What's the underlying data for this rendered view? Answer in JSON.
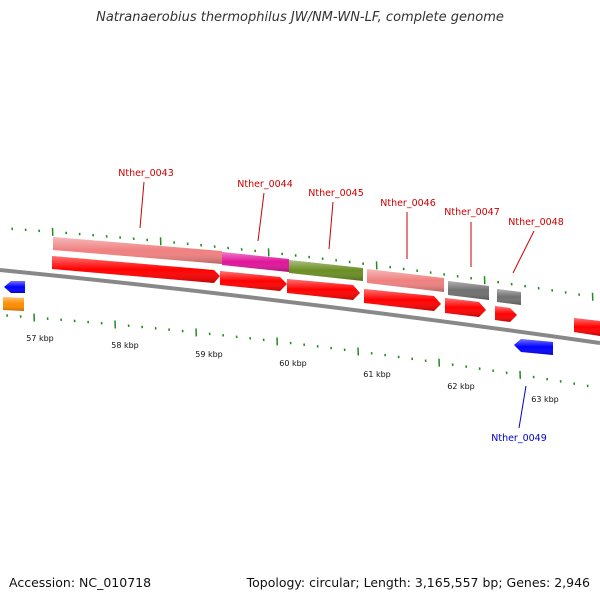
{
  "title": "Natranaerobius thermophilus JW/NM-WN-LF, complete genome",
  "footer": {
    "accession": "Accession: NC_010718",
    "topology": "Topology: circular; Length: 3,165,557 bp; Genes: 2,946"
  },
  "scale_labels": [
    "57 kbp",
    "58 kbp",
    "59 kbp",
    "60 kbp",
    "61 kbp",
    "62 kbp",
    "63 kbp"
  ],
  "gene_labels": [
    {
      "text": "Nther_0043",
      "color": "#cc0000"
    },
    {
      "text": "Nther_0044",
      "color": "#cc0000"
    },
    {
      "text": "Nther_0045",
      "color": "#cc0000"
    },
    {
      "text": "Nther_0046",
      "color": "#cc0000"
    },
    {
      "text": "Nther_0047",
      "color": "#cc0000"
    },
    {
      "text": "Nther_0048",
      "color": "#cc0000"
    },
    {
      "text": "Nther_0049",
      "color": "#0000cc"
    }
  ],
  "colors": {
    "forward_cds": "#ff0000",
    "reverse_cds": "#0000ff",
    "salmon": "#f08080",
    "magenta": "#e0149a",
    "olive": "#6b8e23",
    "gray": "#707070",
    "orange": "#ff8c00",
    "tick": "#228b22",
    "backbone": "#888888"
  }
}
